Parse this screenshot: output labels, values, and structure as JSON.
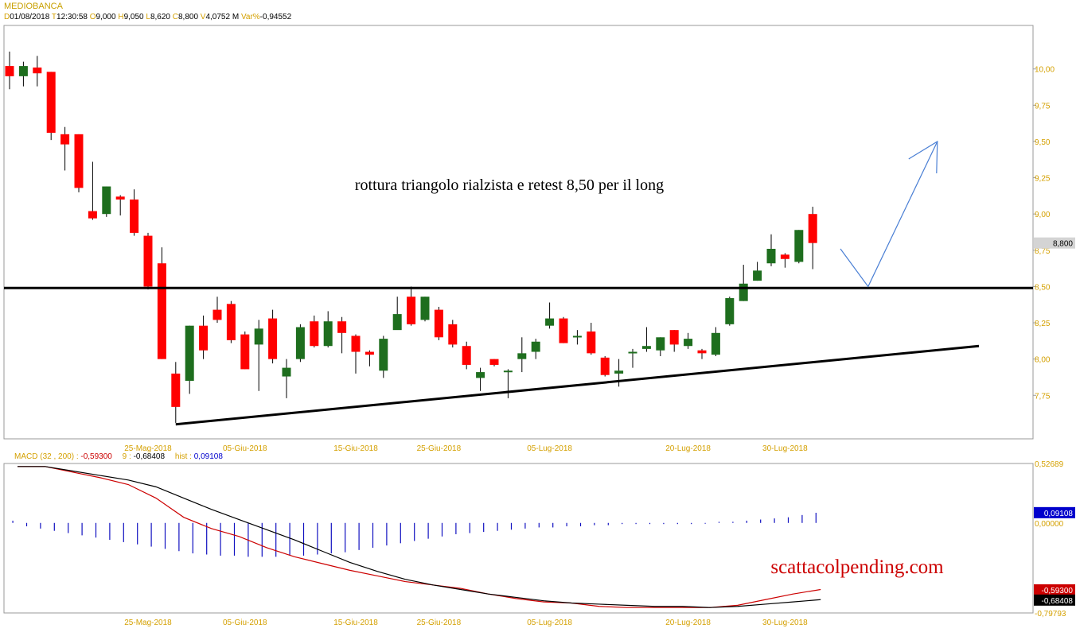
{
  "header": {
    "symbol": "MEDIOBANCA",
    "fields": [
      {
        "key": "D",
        "value": "01/08/2018"
      },
      {
        "key": "T",
        "value": "12:30:58"
      },
      {
        "key": "O",
        "value": "9,000"
      },
      {
        "key": "H",
        "value": "9,050"
      },
      {
        "key": "L",
        "value": "8,620"
      },
      {
        "key": "C",
        "value": "8,800"
      },
      {
        "key": "V",
        "value": "4,0752 M"
      },
      {
        "key": "Var%",
        "value": "-0,94552"
      }
    ]
  },
  "annotations": {
    "main_text": "rottura triangolo rialzista e retest 8,50 per il long",
    "watermark": "scattacolpending.com"
  },
  "chart_data": [
    {
      "type": "candlestick",
      "title": "MEDIOBANCA",
      "ylim": [
        7.45,
        10.3
      ],
      "y_ticks": [
        "10,00",
        "9,75",
        "9,50",
        "9,25",
        "9,00",
        "8,75",
        "8,50",
        "8,25",
        "8,00",
        "7,75"
      ],
      "y_tick_values": [
        10.0,
        9.75,
        9.5,
        9.25,
        9.0,
        8.75,
        8.5,
        8.25,
        8.0,
        7.75
      ],
      "x_ticks": [
        "25-Mag-2018",
        "05-Giu-2018",
        "15-Giu-2018",
        "25-Giu-2018",
        "05-Lug-2018",
        "20-Lug-2018",
        "30-Lug-2018"
      ],
      "x_tick_indices": [
        10,
        17,
        25,
        31,
        39,
        49,
        56
      ],
      "last_price_label": "8,800",
      "last_price": 8.8,
      "colors": {
        "up": "#1e6e1e",
        "down": "#ff0000",
        "wick": "#000000",
        "line": "#000000",
        "arrow": "#4a7fd4"
      },
      "candles": [
        [
          10.02,
          9.95,
          10.12,
          9.86
        ],
        [
          9.95,
          10.02,
          10.05,
          9.88
        ],
        [
          10.01,
          9.97,
          10.09,
          9.88
        ],
        [
          9.98,
          9.56,
          9.98,
          9.51
        ],
        [
          9.55,
          9.48,
          9.6,
          9.3
        ],
        [
          9.55,
          9.18,
          9.55,
          9.15
        ],
        [
          9.02,
          8.97,
          9.36,
          8.96
        ],
        [
          9.0,
          9.19,
          9.19,
          8.98
        ],
        [
          9.12,
          9.1,
          9.13,
          8.99
        ],
        [
          9.1,
          8.87,
          9.17,
          8.85
        ],
        [
          8.85,
          8.5,
          8.87,
          8.48
        ],
        [
          8.66,
          8.0,
          8.77,
          8.0
        ],
        [
          7.9,
          7.67,
          7.98,
          7.56
        ],
        [
          7.85,
          8.23,
          8.23,
          7.76
        ],
        [
          8.23,
          8.06,
          8.3,
          8.0
        ],
        [
          8.34,
          8.27,
          8.43,
          8.25
        ],
        [
          8.38,
          8.13,
          8.4,
          8.11
        ],
        [
          8.17,
          7.93,
          8.19,
          7.93
        ],
        [
          8.1,
          8.21,
          8.27,
          7.78
        ],
        [
          8.28,
          8.0,
          8.34,
          7.97
        ],
        [
          7.88,
          7.94,
          8.0,
          7.73
        ],
        [
          8.0,
          8.22,
          8.24,
          7.98
        ],
        [
          8.26,
          8.09,
          8.3,
          8.08
        ],
        [
          8.09,
          8.26,
          8.33,
          8.08
        ],
        [
          8.26,
          8.18,
          8.29,
          8.04
        ],
        [
          8.16,
          8.05,
          8.17,
          7.9
        ],
        [
          8.05,
          8.03,
          8.06,
          7.95
        ],
        [
          7.92,
          8.14,
          8.16,
          7.87
        ],
        [
          8.2,
          8.31,
          8.43,
          8.21
        ],
        [
          8.43,
          8.24,
          8.5,
          8.23
        ],
        [
          8.27,
          8.43,
          8.43,
          8.26
        ],
        [
          8.34,
          8.15,
          8.36,
          8.13
        ],
        [
          8.24,
          8.1,
          8.27,
          8.08
        ],
        [
          8.09,
          7.96,
          8.12,
          7.93
        ],
        [
          7.87,
          7.91,
          7.94,
          7.78
        ],
        [
          8.0,
          7.96,
          8.0,
          7.95
        ],
        [
          7.91,
          7.92,
          7.93,
          7.73
        ],
        [
          8.0,
          8.04,
          8.15,
          7.91
        ],
        [
          8.05,
          8.12,
          8.14,
          8.0
        ],
        [
          8.23,
          8.28,
          8.39,
          8.21
        ],
        [
          8.28,
          8.11,
          8.29,
          8.11
        ],
        [
          8.15,
          8.16,
          8.2,
          8.1
        ],
        [
          8.19,
          8.04,
          8.25,
          8.03
        ],
        [
          8.01,
          7.89,
          8.02,
          7.88
        ],
        [
          7.9,
          7.92,
          8.0,
          7.81
        ],
        [
          8.04,
          8.05,
          8.07,
          7.94
        ],
        [
          8.07,
          8.09,
          8.22,
          8.05
        ],
        [
          8.06,
          8.15,
          8.15,
          8.02
        ],
        [
          8.2,
          8.1,
          8.2,
          8.05
        ],
        [
          8.09,
          8.14,
          8.18,
          8.07
        ],
        [
          8.06,
          8.04,
          8.07,
          8.0
        ],
        [
          8.03,
          8.18,
          8.22,
          8.02
        ],
        [
          8.24,
          8.42,
          8.43,
          8.23
        ],
        [
          8.4,
          8.52,
          8.65,
          8.4
        ],
        [
          8.54,
          8.61,
          8.67,
          8.54
        ],
        [
          8.66,
          8.76,
          8.86,
          8.64
        ],
        [
          8.72,
          8.69,
          8.73,
          8.63
        ],
        [
          8.67,
          8.89,
          8.89,
          8.66
        ],
        [
          9.0,
          8.8,
          9.05,
          8.62
        ]
      ],
      "horizontal_level": 8.49,
      "trendline": {
        "from": [
          12,
          7.55
        ],
        "to": [
          70,
          8.09
        ]
      },
      "arrow_path": [
        [
          60,
          8.76
        ],
        [
          62,
          8.5
        ],
        [
          67,
          9.5
        ]
      ]
    },
    {
      "type": "line",
      "title": "MACD",
      "params": "(32 , 200)",
      "macd_value": "-0,59300",
      "signal_period": "9",
      "signal_value": "-0,68408",
      "hist_label": "hist",
      "hist_value": "0,09108",
      "ylim": [
        -0.79793,
        0.52689
      ],
      "y_tick_labels": [
        "0,52689",
        "0,00000",
        "-0,79793"
      ],
      "y_tick_values": [
        0.52689,
        0.0,
        -0.79793
      ],
      "value_badges": [
        {
          "label": "0,09108",
          "value": 0.09108,
          "color": "#0000cc"
        },
        {
          "label": "-0,59300",
          "value": -0.593,
          "color": "#cc0000"
        },
        {
          "label": "-0,68408",
          "value": -0.68408,
          "color": "#000000"
        }
      ],
      "series": [
        {
          "name": "MACD",
          "color": "#cc0000",
          "points": [
            [
              0,
              0.5
            ],
            [
              2,
              0.5
            ],
            [
              4,
              0.45
            ],
            [
              6,
              0.4
            ],
            [
              8,
              0.34
            ],
            [
              10,
              0.22
            ],
            [
              12,
              0.05
            ],
            [
              14,
              -0.05
            ],
            [
              16,
              -0.12
            ],
            [
              18,
              -0.22
            ],
            [
              20,
              -0.3
            ],
            [
              22,
              -0.36
            ],
            [
              24,
              -0.42
            ],
            [
              26,
              -0.47
            ],
            [
              28,
              -0.52
            ],
            [
              30,
              -0.55
            ],
            [
              32,
              -0.58
            ],
            [
              34,
              -0.63
            ],
            [
              36,
              -0.67
            ],
            [
              38,
              -0.7
            ],
            [
              40,
              -0.71
            ],
            [
              42,
              -0.74
            ],
            [
              44,
              -0.75
            ],
            [
              46,
              -0.75
            ],
            [
              48,
              -0.75
            ],
            [
              50,
              -0.75
            ],
            [
              52,
              -0.73
            ],
            [
              54,
              -0.68
            ],
            [
              56,
              -0.63
            ],
            [
              58,
              -0.59
            ]
          ]
        },
        {
          "name": "Signal",
          "color": "#000000",
          "points": [
            [
              0,
              0.5
            ],
            [
              2,
              0.5
            ],
            [
              4,
              0.46
            ],
            [
              6,
              0.42
            ],
            [
              8,
              0.38
            ],
            [
              10,
              0.32
            ],
            [
              12,
              0.22
            ],
            [
              14,
              0.12
            ],
            [
              16,
              0.03
            ],
            [
              18,
              -0.06
            ],
            [
              20,
              -0.15
            ],
            [
              22,
              -0.25
            ],
            [
              24,
              -0.35
            ],
            [
              26,
              -0.43
            ],
            [
              28,
              -0.5
            ],
            [
              30,
              -0.55
            ],
            [
              32,
              -0.59
            ],
            [
              34,
              -0.63
            ],
            [
              36,
              -0.66
            ],
            [
              38,
              -0.69
            ],
            [
              40,
              -0.71
            ],
            [
              42,
              -0.72
            ],
            [
              44,
              -0.73
            ],
            [
              46,
              -0.74
            ],
            [
              48,
              -0.74
            ],
            [
              50,
              -0.75
            ],
            [
              52,
              -0.74
            ],
            [
              54,
              -0.72
            ],
            [
              56,
              -0.7
            ],
            [
              58,
              -0.68
            ]
          ]
        }
      ],
      "histogram": [
        0.02,
        -0.03,
        -0.05,
        -0.07,
        -0.09,
        -0.11,
        -0.13,
        -0.15,
        -0.17,
        -0.19,
        -0.21,
        -0.23,
        -0.25,
        -0.27,
        -0.28,
        -0.29,
        -0.29,
        -0.3,
        -0.3,
        -0.3,
        -0.29,
        -0.29,
        -0.28,
        -0.27,
        -0.26,
        -0.24,
        -0.22,
        -0.2,
        -0.18,
        -0.16,
        -0.14,
        -0.12,
        -0.1,
        -0.09,
        -0.08,
        -0.07,
        -0.06,
        -0.05,
        -0.04,
        -0.04,
        -0.03,
        -0.03,
        -0.02,
        -0.02,
        -0.01,
        -0.01,
        -0.01,
        -0.01,
        -0.01,
        -0.01,
        0.0,
        0.01,
        0.01,
        0.02,
        0.03,
        0.04,
        0.05,
        0.07,
        0.09
      ],
      "x_ticks": [
        "25-Mag-2018",
        "05-Giu-2018",
        "15-Giu-2018",
        "25-Giu-2018",
        "05-Lug-2018",
        "20-Lug-2018",
        "30-Lug-2018"
      ]
    }
  ]
}
